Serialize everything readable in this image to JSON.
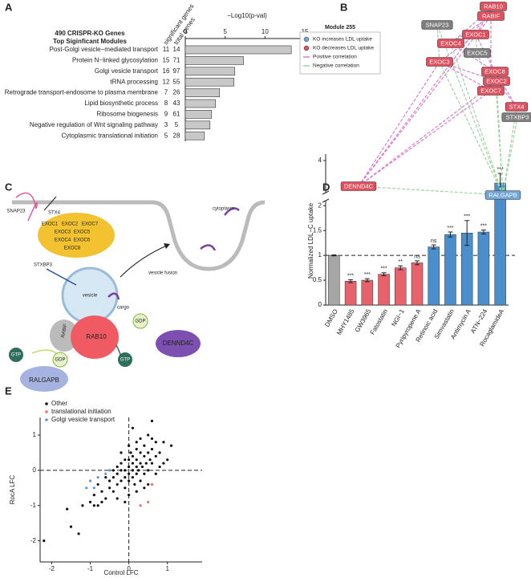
{
  "panels": [
    "A",
    "B",
    "C",
    "D",
    "E"
  ],
  "chart_data": [
    {
      "type": "hbar",
      "title": "490 CRISPR-KO Genes",
      "subtitle": "Top Siginficant Modules",
      "column_headers": [
        "significant genes",
        "total genes"
      ],
      "xlabel": "−Log10(p-val)",
      "categories": [
        "Post-Golgi vesicle−mediated transport",
        "Protein N−linked glycosylation",
        "Golgi vesicle transport",
        "tRNA processing",
        "Retrograde transport-endosome to plasma membrane",
        "Lipid biosynthetic process",
        "Ribosome biogenesis",
        "Negative regulation of Wnt signaling pathway",
        "Cytoplasmic translational initiation"
      ],
      "values": [
        13.3,
        7.3,
        6.2,
        6.1,
        4.3,
        3.8,
        3.3,
        3.1,
        2.4
      ],
      "significant_genes": [
        11,
        15,
        16,
        12,
        7,
        8,
        9,
        3,
        5
      ],
      "total_genes": [
        14,
        71,
        97,
        55,
        26,
        43,
        61,
        5,
        28
      ],
      "color": "#c8c8c8",
      "xlim": [
        0,
        15.5
      ],
      "xticks": [
        0,
        5,
        10,
        15
      ]
    },
    {
      "type": "bar",
      "ylabel": "Normalized LDL−C uptake",
      "categories": [
        "DMSO",
        "MHY1485",
        "GW3965",
        "Fatostatin",
        "NGI−1",
        "Pyripyropene A",
        "Retinoic acid",
        "Simvastatin",
        "Antimycin A",
        "ATN−224",
        "RocaglamideA"
      ],
      "values": [
        1.0,
        0.48,
        0.5,
        0.62,
        0.75,
        0.85,
        1.17,
        1.42,
        1.45,
        1.47,
        3.3
      ],
      "errors": [
        0.01,
        0.03,
        0.03,
        0.03,
        0.04,
        0.04,
        0.04,
        0.05,
        0.25,
        0.04,
        0.3
      ],
      "annotations": [
        null,
        "***",
        "***",
        "***",
        "**",
        "ns",
        "ns",
        "***",
        "***",
        "***",
        "***"
      ],
      "colors": [
        "#a6a6a6",
        "#e8626b",
        "#e8626b",
        "#e8626b",
        "#e8626b",
        "#e8626b",
        "#4a8ecb",
        "#4a8ecb",
        "#4a8ecb",
        "#4a8ecb",
        "#4a8ecb"
      ],
      "ylim": [
        0,
        4.2
      ],
      "ybreak": [
        2.1,
        3.0
      ],
      "yticks": [
        0,
        0.5,
        1,
        1.5,
        2,
        4
      ],
      "reference_line": 1
    },
    {
      "type": "scatter",
      "xlabel": "Control LFC",
      "ylabel": "RocA LFC",
      "xlim": [
        -2.3,
        1.9
      ],
      "ylim": [
        -2.6,
        1.5
      ],
      "xticks": [
        -2,
        -1,
        0,
        1
      ],
      "yticks": [
        -2,
        -1,
        0,
        1
      ],
      "reference_x": 0,
      "reference_y": 0,
      "series": [
        {
          "name": "Other",
          "color": "#111111",
          "x": [
            -2.2,
            -1.5,
            -1.3,
            -1.6,
            -1.2,
            -1.0,
            -0.9,
            -0.8,
            -0.7,
            -0.6,
            -0.5,
            -0.5,
            -0.4,
            -0.4,
            -0.3,
            -0.3,
            -0.3,
            -0.2,
            -0.2,
            -0.2,
            -0.1,
            -0.1,
            -0.1,
            -0.1,
            0.0,
            0.0,
            0.0,
            0.0,
            0.05,
            0.1,
            0.1,
            0.1,
            0.1,
            0.15,
            0.2,
            0.2,
            0.2,
            0.2,
            0.25,
            0.3,
            0.3,
            0.3,
            0.35,
            0.4,
            0.4,
            0.4,
            0.45,
            0.5,
            0.5,
            0.5,
            0.55,
            0.6,
            0.6,
            0.6,
            0.7,
            0.7,
            0.8,
            0.8,
            0.9,
            1.0,
            1.1,
            0.0,
            -0.2,
            -0.4,
            -0.6,
            -0.7,
            -0.9,
            -0.8,
            0.2,
            0.4,
            0.0,
            -0.3,
            0.3,
            0.1,
            0.6,
            0.2,
            -0.1,
            0.5,
            0.7,
            0.9
          ],
          "values": [
            -2.0,
            -1.6,
            -1.8,
            -1.1,
            -1.0,
            -0.9,
            -0.7,
            -1.0,
            -0.6,
            -0.8,
            -0.5,
            -0.3,
            -0.6,
            -0.2,
            -0.4,
            -0.1,
            0.1,
            -0.3,
            0.0,
            0.2,
            -0.2,
            0.0,
            0.3,
            -0.5,
            -0.1,
            0.1,
            0.3,
            -0.3,
            0.5,
            0.0,
            0.2,
            -0.2,
            0.4,
            -0.4,
            0.1,
            0.3,
            -0.1,
            0.6,
            0.0,
            0.2,
            0.5,
            -0.3,
            0.1,
            0.4,
            0.7,
            -0.1,
            0.2,
            0.5,
            1.0,
            0.0,
            0.3,
            0.6,
            0.9,
            0.2,
            0.4,
            -0.1,
            0.5,
            0.1,
            0.8,
            0.3,
            0.7,
            0.7,
            0.5,
            0.0,
            -0.2,
            -0.9,
            -1.0,
            -0.4,
            -0.6,
            -0.5,
            -0.7,
            -0.8,
            0.9,
            1.2,
            1.4,
            0.8,
            -0.9,
            -0.4,
            0.8,
            0.2
          ]
        },
        {
          "name": "translational initiation",
          "color": "#f07070",
          "x": [
            0.5,
            0.3,
            0.6
          ],
          "values": [
            -0.9,
            -1.0,
            -0.4
          ]
        },
        {
          "name": "Golgi vesicle transport",
          "color": "#5b9bd5",
          "x": [
            -1.0,
            -0.9,
            -0.8,
            -0.6,
            -0.5,
            -1.1
          ],
          "values": [
            -0.3,
            -0.5,
            -0.2,
            -0.1,
            0.0,
            -0.5
          ]
        }
      ]
    }
  ],
  "network": {
    "title": "Module 255",
    "legend": [
      {
        "label": "KO increases LDL uptake",
        "color": "#6fa6d6"
      },
      {
        "label": "KO decreases LDL uptake",
        "color": "#e0505f"
      },
      {
        "label": "Positive correlation",
        "color": "#d77fd0"
      },
      {
        "label": "Negative correlation",
        "color": "#9ed49e"
      }
    ],
    "nodes": [
      {
        "label": "RAB10",
        "color": "#e0505f"
      },
      {
        "label": "RABIF",
        "color": "#e0505f"
      },
      {
        "label": "SNAP23",
        "color": "#7f7f7f"
      },
      {
        "label": "EXOC1",
        "color": "#e0505f"
      },
      {
        "label": "EXOC4",
        "color": "#e0505f"
      },
      {
        "label": "EXOC5",
        "color": "#7f7f7f"
      },
      {
        "label": "EXOC3",
        "color": "#e0505f"
      },
      {
        "label": "EXOC8",
        "color": "#e0505f"
      },
      {
        "label": "EXOC2",
        "color": "#e0505f"
      },
      {
        "label": "EXOC7",
        "color": "#e0505f"
      },
      {
        "label": "STX4",
        "color": "#e0505f"
      },
      {
        "label": "STXBP3",
        "color": "#7f7f7f"
      },
      {
        "label": "DENND4C",
        "color": "#e0505f"
      },
      {
        "label": "RALGAPB",
        "color": "#6fa6d6"
      }
    ]
  },
  "diagram": {
    "snap23": "SNAP23",
    "stx4": "STX4",
    "exocyst": [
      "EXOC1",
      "EXOC2",
      "EXOC7",
      "EXOC3",
      "EXOC5",
      "EXOC4",
      "EXOC6",
      "EXOC8"
    ],
    "cytoplasm": "cytoplasm",
    "stxbp3": "STXBP3",
    "vesicle": "vesicle",
    "vesicle_fusion": "vesicle fusion",
    "cargo": "cargo",
    "rabif": "RABIF",
    "rab10": "RAB10",
    "gdp_right": "GDP",
    "gtp_right": "GTP",
    "dennd4c": "DENND4C",
    "gtp_left": "GTP",
    "gdp_left": "GDP",
    "ralgapb": "RALGAPB"
  }
}
